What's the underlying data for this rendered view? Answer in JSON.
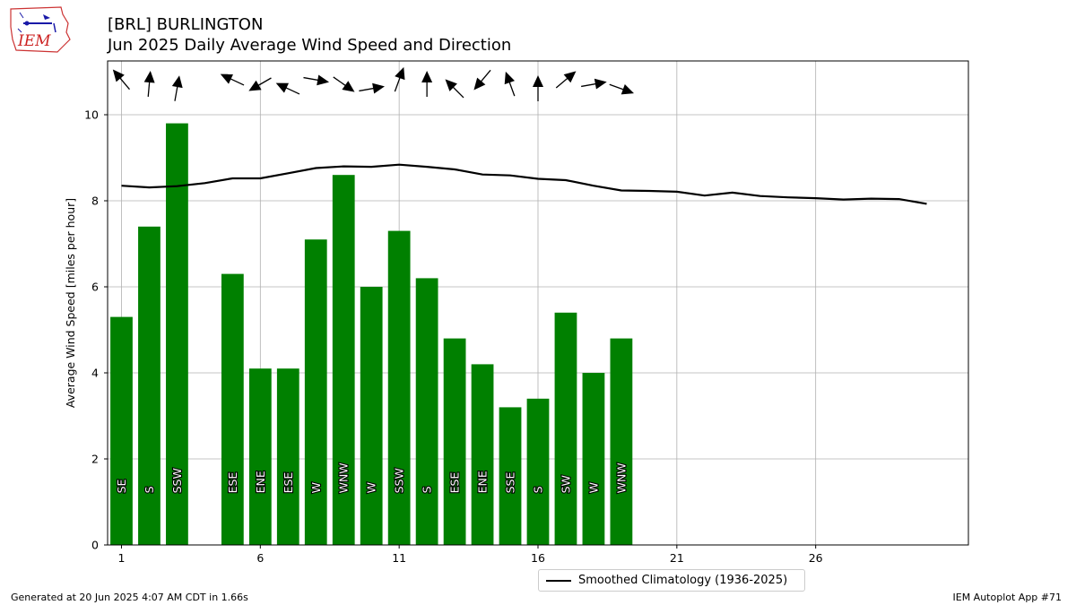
{
  "header": {
    "title_line1": "[BRL] BURLINGTON",
    "title_line2": "Jun 2025 Daily Average Wind Speed and Direction"
  },
  "logo": {
    "text": "IEM"
  },
  "footer": {
    "generated": "Generated at 20 Jun 2025 4:07 AM CDT in 1.66s",
    "app": "IEM Autoplot App #71"
  },
  "legend": {
    "label": "Smoothed Climatology (1936-2025)"
  },
  "colors": {
    "bar": "#008000",
    "line": "#000000",
    "grid": "#b0b0b0"
  },
  "chart_data": {
    "type": "bar",
    "title": "[BRL] BURLINGTON\nJun 2025 Daily Average Wind Speed and Direction",
    "xlabel": "",
    "ylabel": "Average Wind Speed [miles per hour]",
    "xlim": [
      0.5,
      31.5
    ],
    "ylim": [
      0,
      11.25
    ],
    "xticks": [
      1,
      6,
      11,
      16,
      21,
      26
    ],
    "yticks": [
      0,
      2,
      4,
      6,
      8,
      10
    ],
    "grid": true,
    "legend_position": "bottom-right below axes",
    "bars": [
      {
        "day": 1,
        "value": 5.3,
        "dir": "SE"
      },
      {
        "day": 2,
        "value": 7.4,
        "dir": "S"
      },
      {
        "day": 3,
        "value": 9.8,
        "dir": "SSW"
      },
      {
        "day": 5,
        "value": 6.3,
        "dir": "ESE"
      },
      {
        "day": 6,
        "value": 4.1,
        "dir": "ENE"
      },
      {
        "day": 7,
        "value": 4.1,
        "dir": "ESE"
      },
      {
        "day": 8,
        "value": 7.1,
        "dir": "W"
      },
      {
        "day": 9,
        "value": 8.6,
        "dir": "WNW"
      },
      {
        "day": 10,
        "value": 6.0,
        "dir": "W"
      },
      {
        "day": 11,
        "value": 7.3,
        "dir": "SSW"
      },
      {
        "day": 12,
        "value": 6.2,
        "dir": "S"
      },
      {
        "day": 13,
        "value": 4.8,
        "dir": "ESE"
      },
      {
        "day": 14,
        "value": 4.2,
        "dir": "ENE"
      },
      {
        "day": 15,
        "value": 3.2,
        "dir": "SSE"
      },
      {
        "day": 16,
        "value": 3.4,
        "dir": "S"
      },
      {
        "day": 17,
        "value": 5.4,
        "dir": "SW"
      },
      {
        "day": 18,
        "value": 4.0,
        "dir": "W"
      },
      {
        "day": 19,
        "value": 4.8,
        "dir": "WNW"
      }
    ],
    "arrows": [
      {
        "day": 1,
        "heading_deg": 320
      },
      {
        "day": 2,
        "heading_deg": 5
      },
      {
        "day": 3,
        "heading_deg": 10
      },
      {
        "day": 5,
        "heading_deg": 295
      },
      {
        "day": 6,
        "heading_deg": 240
      },
      {
        "day": 7,
        "heading_deg": 295
      },
      {
        "day": 8,
        "heading_deg": 100
      },
      {
        "day": 9,
        "heading_deg": 125
      },
      {
        "day": 10,
        "heading_deg": 80
      },
      {
        "day": 11,
        "heading_deg": 20
      },
      {
        "day": 12,
        "heading_deg": 0
      },
      {
        "day": 13,
        "heading_deg": 315
      },
      {
        "day": 14,
        "heading_deg": 220
      },
      {
        "day": 15,
        "heading_deg": 340
      },
      {
        "day": 16,
        "heading_deg": 0
      },
      {
        "day": 17,
        "heading_deg": 50
      },
      {
        "day": 18,
        "heading_deg": 80
      },
      {
        "day": 19,
        "heading_deg": 110
      }
    ],
    "series": [
      {
        "name": "Smoothed Climatology (1936-2025)",
        "x": [
          1,
          2,
          3,
          4,
          5,
          6,
          7,
          8,
          9,
          10,
          11,
          12,
          13,
          14,
          15,
          16,
          17,
          18,
          19,
          20,
          21,
          22,
          23,
          24,
          25,
          26,
          27,
          28,
          29,
          30
        ],
        "values": [
          8.35,
          8.31,
          8.34,
          8.41,
          8.52,
          8.52,
          8.64,
          8.76,
          8.8,
          8.79,
          8.84,
          8.79,
          8.73,
          8.61,
          8.59,
          8.51,
          8.48,
          8.35,
          8.24,
          8.23,
          8.21,
          8.12,
          8.19,
          8.11,
          8.08,
          8.06,
          8.03,
          8.05,
          8.04,
          7.93
        ]
      }
    ]
  }
}
